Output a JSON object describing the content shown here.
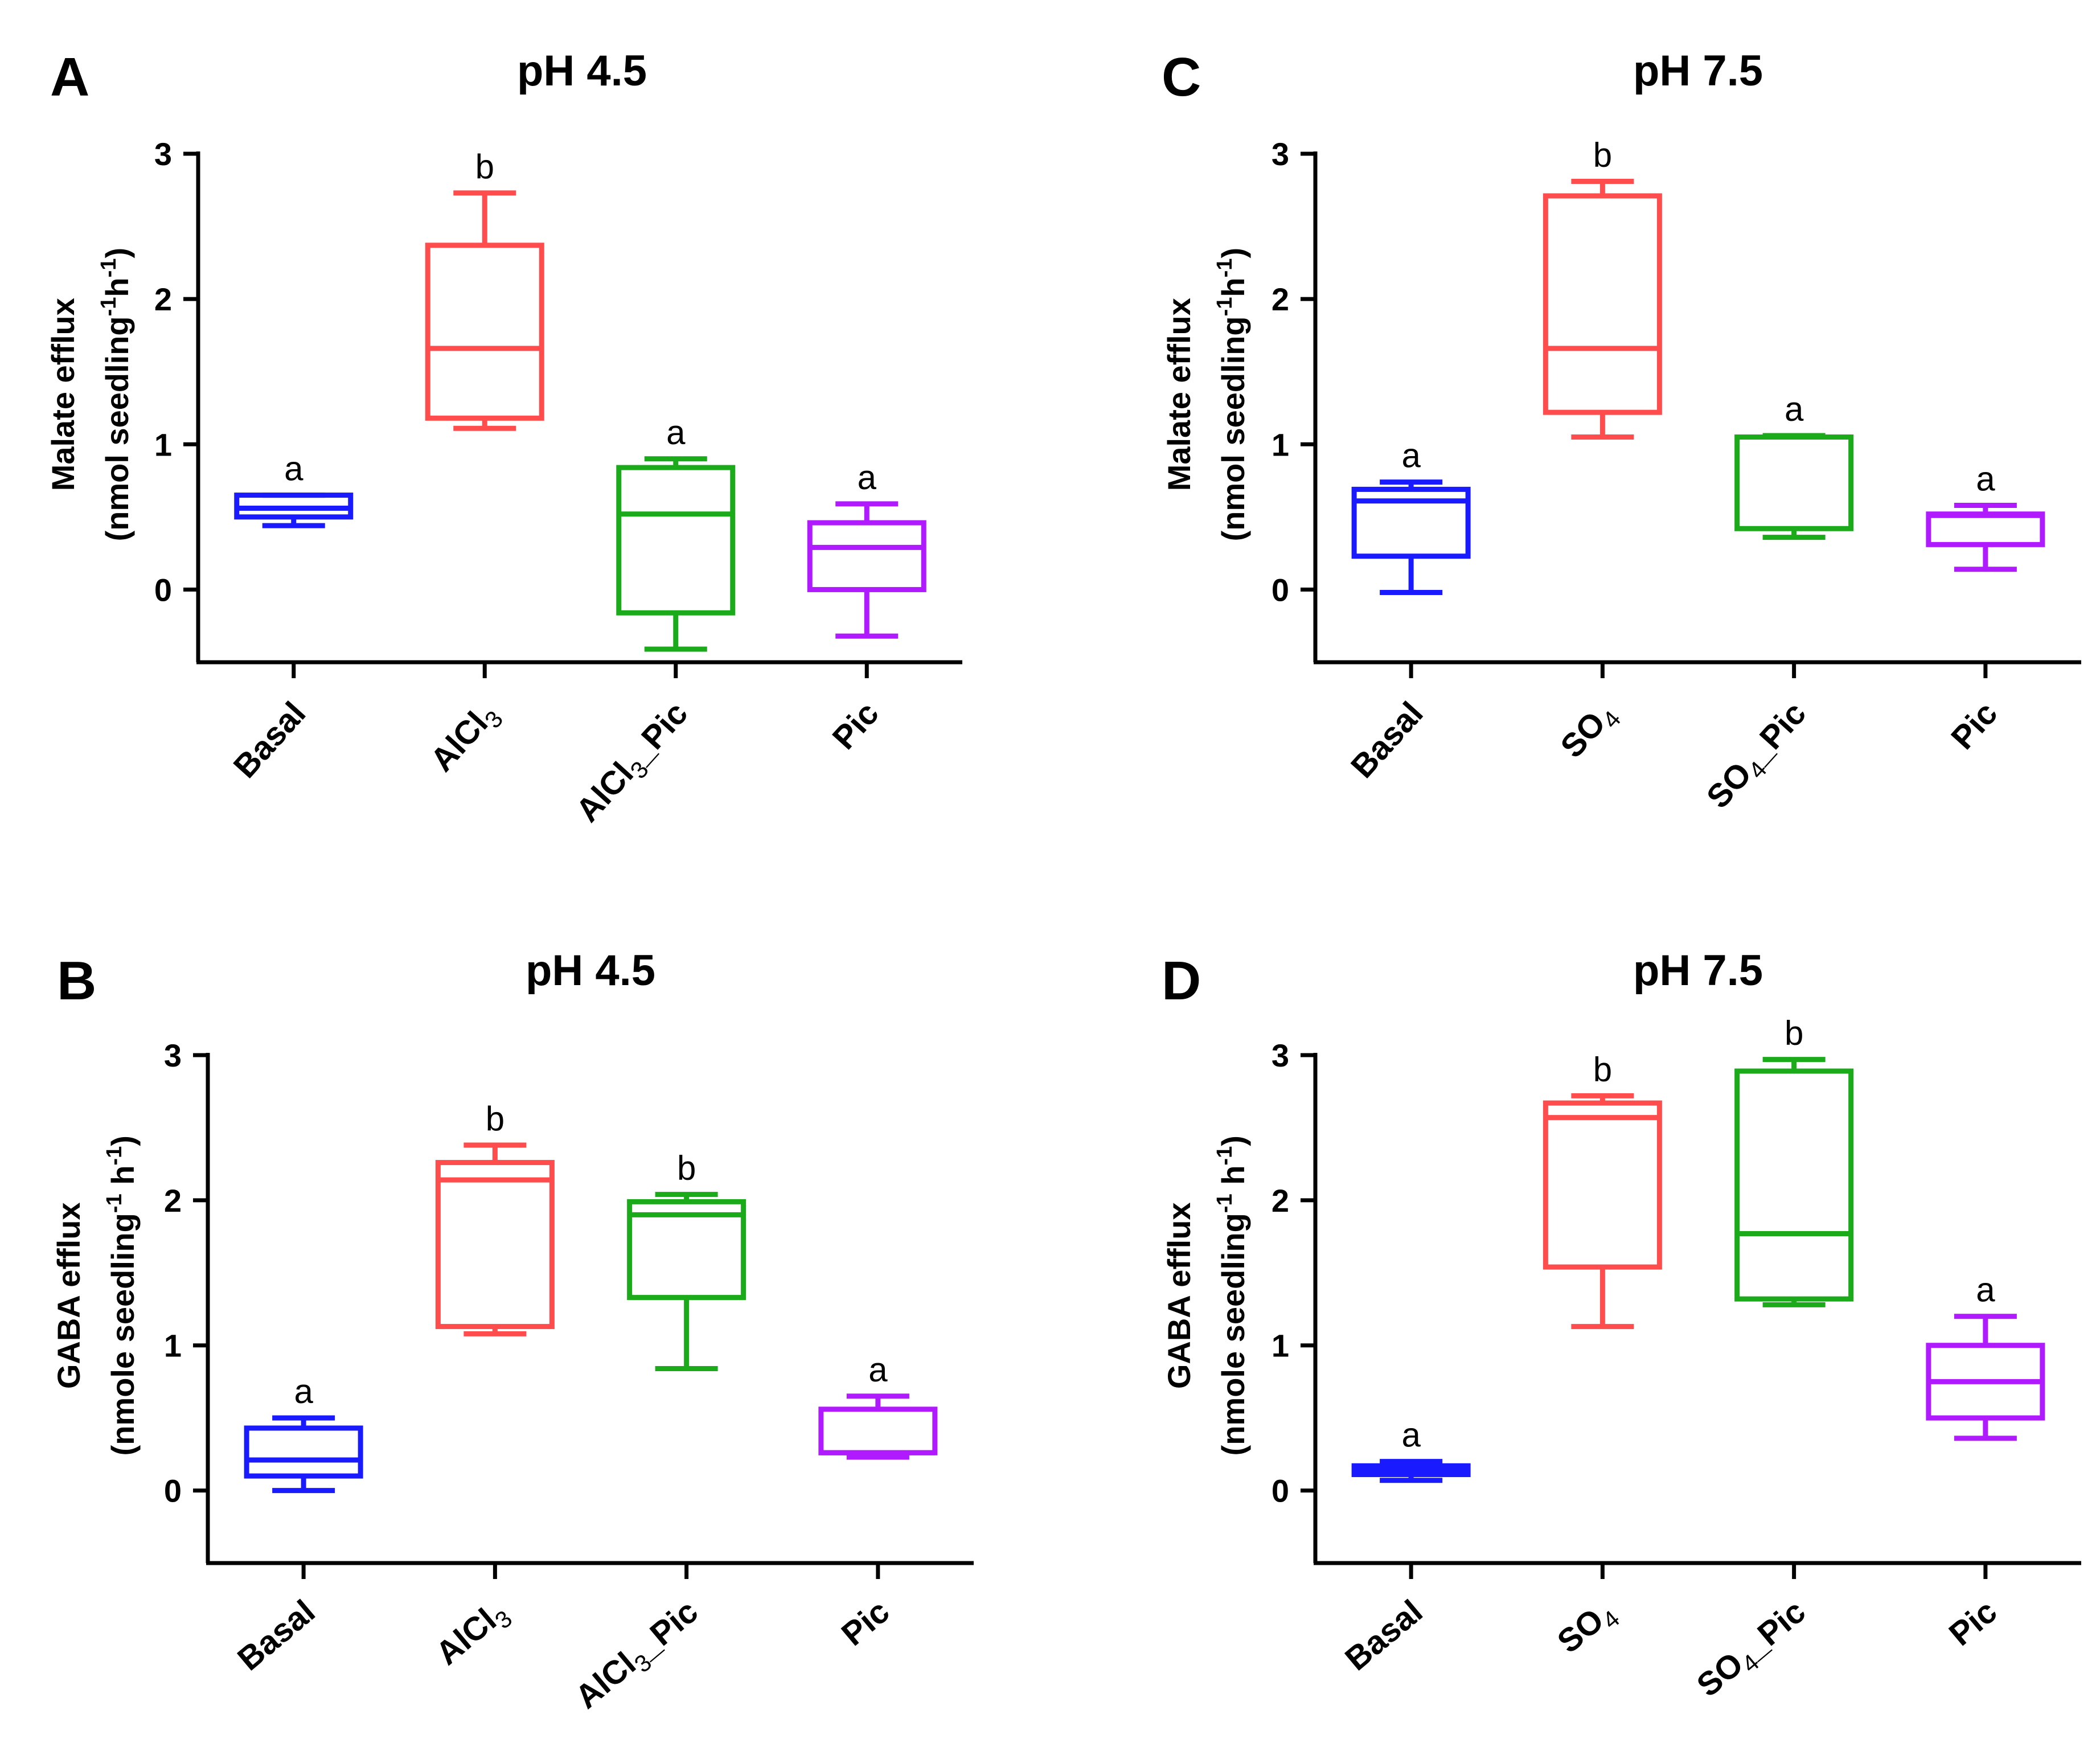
{
  "chart_data": [
    {
      "panel": "A",
      "type": "box",
      "title": "pH 4.5",
      "ylabel_line1": "Malate efflux",
      "ylabel_line2": "(nmol seedling",
      "ylabel_sup1": "-1",
      "ylabel_mid": "h",
      "ylabel_sup2": "-1",
      "ylabel_end": ")",
      "ylim": [
        -0.5,
        3
      ],
      "yticks": [
        "0",
        "1",
        "2",
        "3"
      ],
      "categories": [
        {
          "main": "Basal",
          "sub": "",
          "tail": ""
        },
        {
          "main": "AlCl",
          "sub": "3",
          "tail": ""
        },
        {
          "main": "AlCl",
          "sub": "3",
          "tail": "_Pic"
        },
        {
          "main": "Pic",
          "sub": "",
          "tail": ""
        }
      ],
      "boxes": [
        {
          "min": 0.44,
          "q1": 0.5,
          "median": 0.56,
          "q3": 0.65,
          "max": 0.65,
          "color": "#1a1aff",
          "sig": "a"
        },
        {
          "min": 1.11,
          "q1": 1.18,
          "median": 1.66,
          "q3": 2.37,
          "max": 2.73,
          "color": "#ff4d4d",
          "sig": "b"
        },
        {
          "min": -0.41,
          "q1": -0.16,
          "median": 0.52,
          "q3": 0.84,
          "max": 0.9,
          "color": "#1aaa1a",
          "sig": "a"
        },
        {
          "min": -0.32,
          "q1": 0.0,
          "median": 0.29,
          "q3": 0.46,
          "max": 0.59,
          "color": "#b01aff",
          "sig": "a"
        }
      ]
    },
    {
      "panel": "C",
      "type": "box",
      "title": "pH 7.5",
      "ylabel_line1": "Malate efflux",
      "ylabel_line2": "(nmol seedling",
      "ylabel_sup1": "-1",
      "ylabel_mid": "h",
      "ylabel_sup2": "-1",
      "ylabel_end": ")",
      "ylim": [
        -0.5,
        3
      ],
      "yticks": [
        "0",
        "1",
        "2",
        "3"
      ],
      "categories": [
        {
          "main": "Basal",
          "sub": "",
          "tail": ""
        },
        {
          "main": "SO",
          "sub": "4",
          "tail": ""
        },
        {
          "main": "SO",
          "sub": "4",
          "tail": "_Pic"
        },
        {
          "main": "Pic",
          "sub": "",
          "tail": ""
        }
      ],
      "boxes": [
        {
          "min": -0.02,
          "q1": 0.23,
          "median": 0.61,
          "q3": 0.69,
          "max": 0.74,
          "color": "#1a1aff",
          "sig": "a"
        },
        {
          "min": 1.05,
          "q1": 1.22,
          "median": 1.66,
          "q3": 2.71,
          "max": 2.81,
          "color": "#ff4d4d",
          "sig": "b"
        },
        {
          "min": 0.36,
          "q1": 0.42,
          "median": 1.05,
          "q3": 1.05,
          "max": 1.06,
          "color": "#1aaa1a",
          "sig": "a"
        },
        {
          "min": 0.14,
          "q1": 0.31,
          "median": 0.51,
          "q3": 0.52,
          "max": 0.58,
          "color": "#b01aff",
          "sig": "a"
        }
      ]
    },
    {
      "panel": "B",
      "type": "box",
      "title": "pH 4.5",
      "ylabel_line1": "GABA efflux",
      "ylabel_line2": "(nmole seedling",
      "ylabel_sup1": "-1",
      "ylabel_mid": " h",
      "ylabel_sup2": "-1",
      "ylabel_end": ")",
      "ylim": [
        -0.5,
        3
      ],
      "yticks": [
        "0",
        "1",
        "2",
        "3"
      ],
      "categories": [
        {
          "main": "Basal",
          "sub": "",
          "tail": ""
        },
        {
          "main": "AlCl",
          "sub": "3",
          "tail": ""
        },
        {
          "main": "AlCl",
          "sub": "3",
          "tail": "_Pic"
        },
        {
          "main": "Pic",
          "sub": "",
          "tail": ""
        }
      ],
      "boxes": [
        {
          "min": 0.0,
          "q1": 0.1,
          "median": 0.21,
          "q3": 0.43,
          "max": 0.5,
          "color": "#1a1aff",
          "sig": "a"
        },
        {
          "min": 1.08,
          "q1": 1.13,
          "median": 2.14,
          "q3": 2.26,
          "max": 2.38,
          "color": "#ff4d4d",
          "sig": "b"
        },
        {
          "min": 0.84,
          "q1": 1.33,
          "median": 1.9,
          "q3": 1.99,
          "max": 2.04,
          "color": "#1aaa1a",
          "sig": "b"
        },
        {
          "min": 0.23,
          "q1": 0.26,
          "median": 0.26,
          "q3": 0.56,
          "max": 0.65,
          "color": "#b01aff",
          "sig": "a"
        }
      ]
    },
    {
      "panel": "D",
      "type": "box",
      "title": "pH 7.5",
      "ylabel_line1": "GABA efflux",
      "ylabel_line2": "(nmole seedling",
      "ylabel_sup1": "-1",
      "ylabel_mid": " h",
      "ylabel_sup2": "-1",
      "ylabel_end": ")",
      "ylim": [
        -0.5,
        3
      ],
      "yticks": [
        "0",
        "1",
        "2",
        "3"
      ],
      "categories": [
        {
          "main": "Basal",
          "sub": "",
          "tail": ""
        },
        {
          "main": "SO",
          "sub": "4",
          "tail": ""
        },
        {
          "main": "SO",
          "sub": "4",
          "tail": "_Pic"
        },
        {
          "main": "Pic",
          "sub": "",
          "tail": ""
        }
      ],
      "boxes": [
        {
          "min": 0.07,
          "q1": 0.11,
          "median": 0.14,
          "q3": 0.17,
          "max": 0.2,
          "color": "#1a1aff",
          "sig": "a"
        },
        {
          "min": 1.13,
          "q1": 1.54,
          "median": 2.57,
          "q3": 2.67,
          "max": 2.72,
          "color": "#ff4d4d",
          "sig": "b"
        },
        {
          "min": 1.28,
          "q1": 1.32,
          "median": 1.77,
          "q3": 2.89,
          "max": 2.97,
          "color": "#1aaa1a",
          "sig": "b"
        },
        {
          "min": 0.36,
          "q1": 0.5,
          "median": 0.75,
          "q3": 1.0,
          "max": 1.2,
          "color": "#b01aff",
          "sig": "a"
        }
      ]
    }
  ]
}
